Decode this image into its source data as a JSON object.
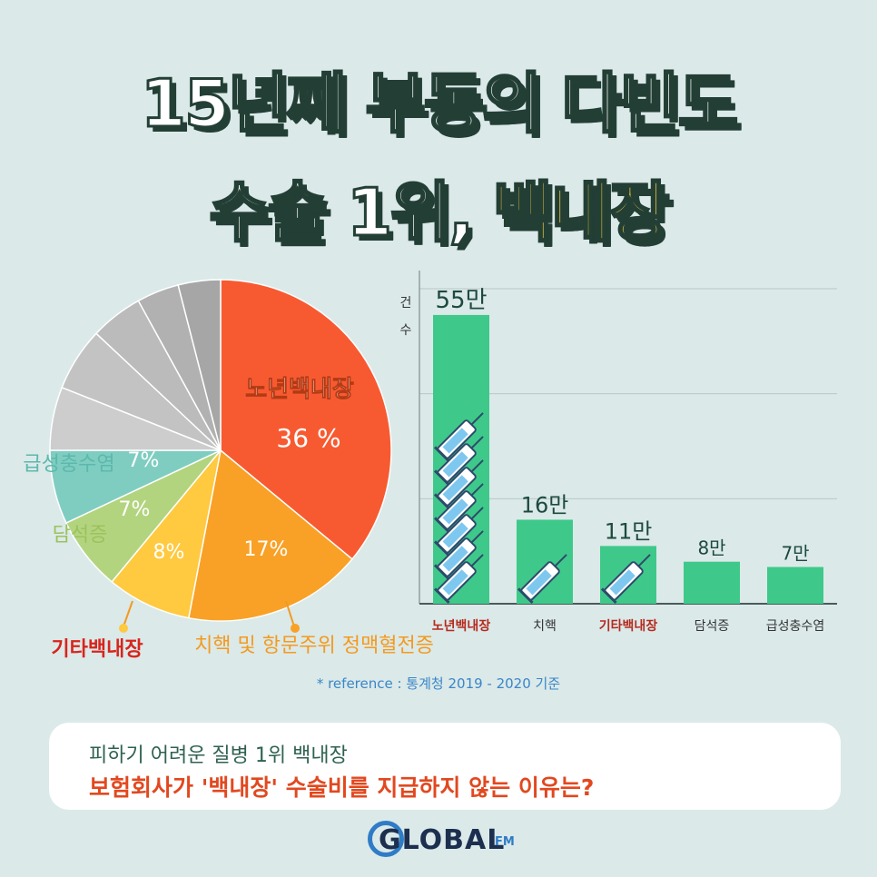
{
  "title": {
    "line1": "15년째 부동의 다빈도",
    "line2_prefix": "수술 1위, ",
    "line2_highlight": "백내장"
  },
  "chart_data": [
    {
      "type": "pie",
      "slices": [
        {
          "label": "노년백내장",
          "value_label": "36 %",
          "value": 36,
          "color": "#f75a31"
        },
        {
          "label": "치핵 및 항문주위 정맥혈전증",
          "value_label": "17%",
          "value": 17,
          "color": "#f9a126"
        },
        {
          "label": "기타백내장",
          "value_label": "8%",
          "value": 8,
          "color": "#ffc940"
        },
        {
          "label": "담석증",
          "value_label": "7%",
          "value": 7,
          "color": "#b3d47f"
        },
        {
          "label": "급성충수염",
          "value_label": "7%",
          "value": 7,
          "color": "#7fcdc1"
        },
        {
          "label": "",
          "value_label": "",
          "value": 6,
          "color": "#cdcdcd"
        },
        {
          "label": "",
          "value_label": "",
          "value": 6,
          "color": "#c3c3c3"
        },
        {
          "label": "",
          "value_label": "",
          "value": 5,
          "color": "#bbbbbb"
        },
        {
          "label": "",
          "value_label": "",
          "value": 4,
          "color": "#b1b1b1"
        },
        {
          "label": "",
          "value_label": "",
          "value": 4,
          "color": "#a6a6a6"
        }
      ],
      "label_colors": {
        "노년백내장": "#ffffff",
        "치핵 및 항문주위 정맥혈전증": "#f39a1e",
        "기타백내장": "#d8251c",
        "담석증": "#9bc25d",
        "급성충수염": "#5cb8ac"
      }
    },
    {
      "type": "bar",
      "ylabel": "건수",
      "categories": [
        "노년백내장",
        "치핵",
        "기타백내장",
        "담석증",
        "급성충수염"
      ],
      "values": [
        55,
        16,
        11,
        8,
        7
      ],
      "value_labels": [
        "55만",
        "16만",
        "11만",
        "8만",
        "7만"
      ],
      "highlight_categories": [
        "노년백내장",
        "기타백내장"
      ],
      "ylim": [
        0,
        60
      ],
      "bar_color": "#3ec98a",
      "highlight_color": "#b52a1e",
      "grid": true
    }
  ],
  "reference": "* reference : 통계청 2019 - 2020 기준",
  "info_box": {
    "line1": "피하기 어려운 질병 1위 백내장",
    "line2": "보험회사가 '백내장' 수술비를 지급하지 않는 이유는?"
  },
  "logo": {
    "text": "GLOBAL",
    "suffix": "FM"
  }
}
